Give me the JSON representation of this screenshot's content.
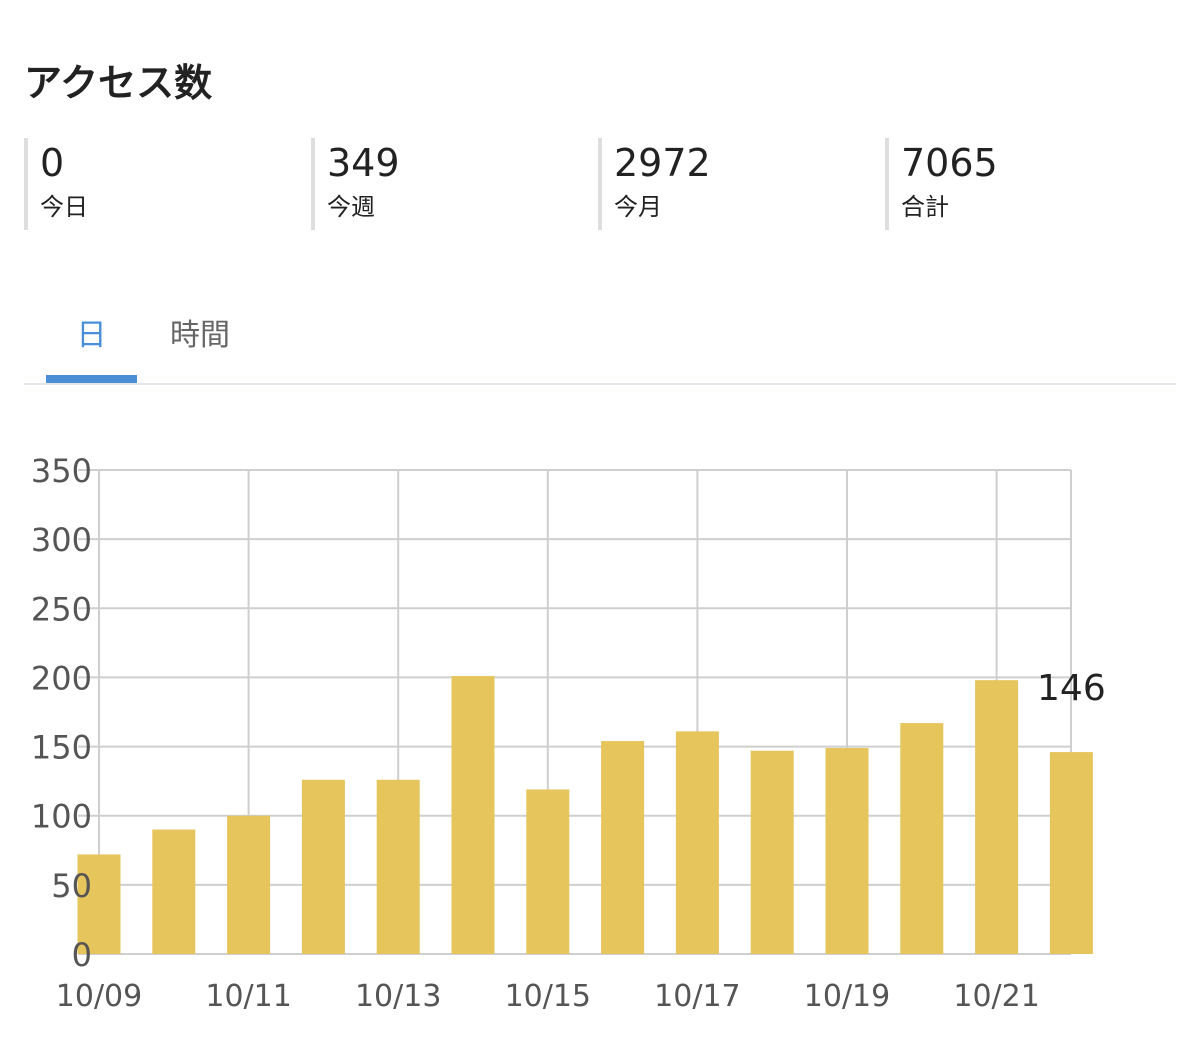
{
  "section_title": "アクセス数",
  "stats": [
    {
      "value": "0",
      "label": "今日"
    },
    {
      "value": "349",
      "label": "今週"
    },
    {
      "value": "2972",
      "label": "今月"
    },
    {
      "value": "7065",
      "label": "合計"
    }
  ],
  "tabs": [
    {
      "label": "日",
      "active": true
    },
    {
      "label": "時間",
      "active": false
    }
  ],
  "colors": {
    "bar": "#e6c55c",
    "accent": "#4a8fd6",
    "grid": "#cfcfcf",
    "axis_text": "#555555"
  },
  "chart_data": {
    "type": "bar",
    "categories": [
      "10/09",
      "10/10",
      "10/11",
      "10/12",
      "10/13",
      "10/14",
      "10/15",
      "10/16",
      "10/17",
      "10/18",
      "10/19",
      "10/20",
      "10/21",
      "10/22"
    ],
    "values": [
      72,
      90,
      100,
      126,
      126,
      201,
      119,
      154,
      161,
      147,
      149,
      167,
      198,
      146
    ],
    "x_tick_labels": [
      "10/09",
      "10/11",
      "10/13",
      "10/15",
      "10/17",
      "10/19",
      "10/21"
    ],
    "y_ticks": [
      0,
      50,
      100,
      150,
      200,
      250,
      300,
      350
    ],
    "ylim": [
      0,
      350
    ],
    "data_label": {
      "category": "10/22",
      "text": "146"
    },
    "grid": true,
    "legend": "none",
    "title": "",
    "xlabel": "",
    "ylabel": ""
  }
}
